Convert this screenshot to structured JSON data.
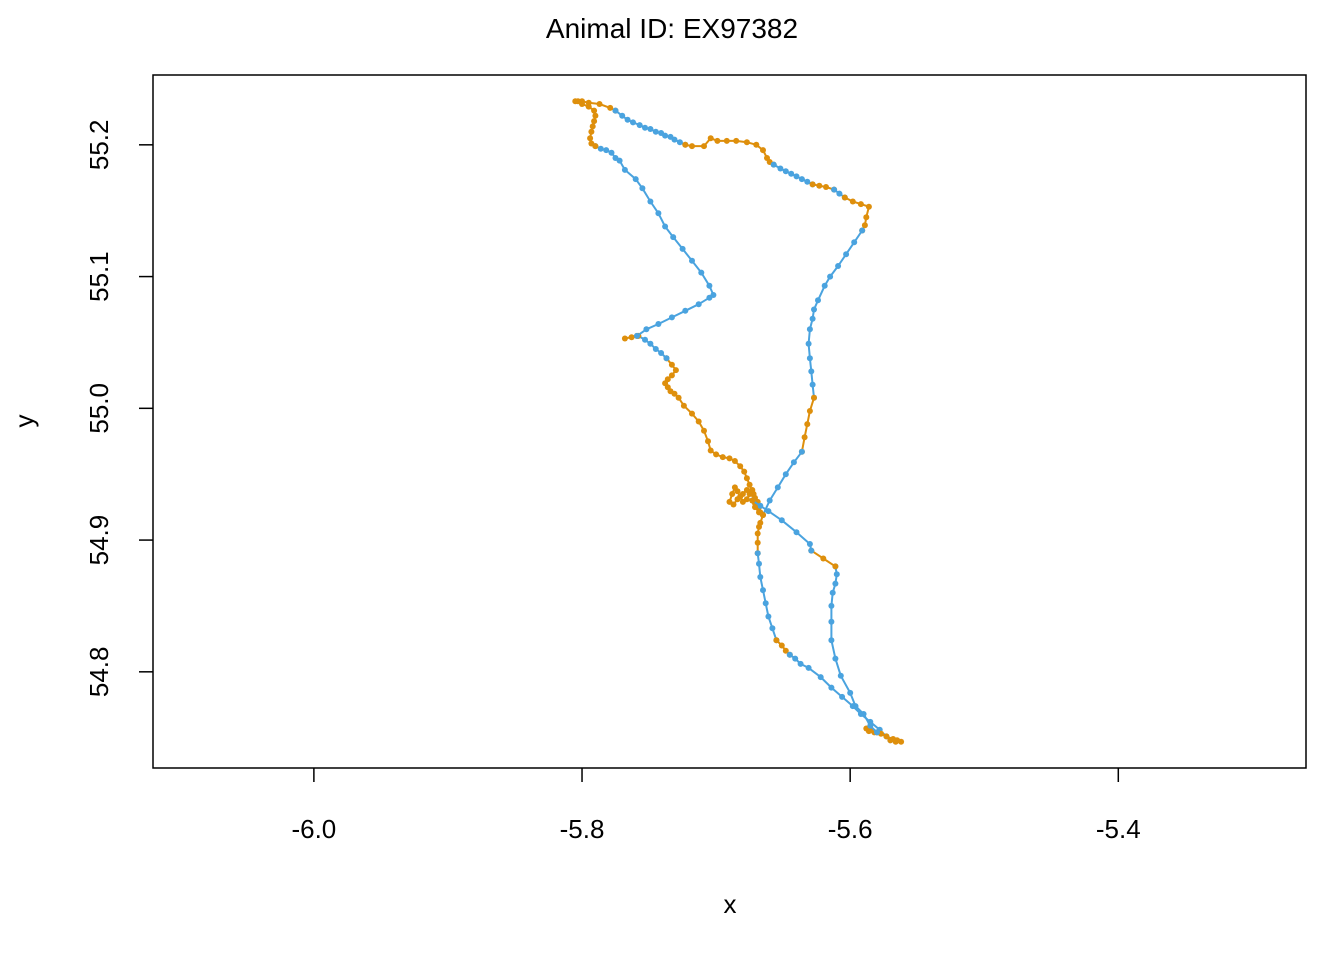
{
  "chart_data": {
    "type": "line",
    "title": "Animal ID: EX97382",
    "xlabel": "x",
    "ylabel": "y",
    "xlim": [
      -6.12,
      -5.26
    ],
    "ylim": [
      54.727,
      55.253
    ],
    "x_ticks": [
      -6.0,
      -5.8,
      -5.6,
      -5.4
    ],
    "x_tick_labels": [
      "-6.0",
      "-5.8",
      "-5.6",
      "-5.4"
    ],
    "y_ticks": [
      54.8,
      54.9,
      55.0,
      55.1,
      55.2
    ],
    "y_tick_labels": [
      "54.8",
      "54.9",
      "55.0",
      "55.1",
      "55.2"
    ],
    "grid": false,
    "colors": {
      "blue": "#4aa3df",
      "orange": "#de8f0c"
    },
    "segments": [
      {
        "color": "orange",
        "points": [
          [
            -5.805,
            55.233
          ],
          [
            -5.8,
            55.233
          ],
          [
            -5.795,
            55.232
          ],
          [
            -5.787,
            55.231
          ],
          [
            -5.779,
            55.228
          ],
          [
            -5.775,
            55.226
          ]
        ]
      },
      {
        "color": "blue",
        "points": [
          [
            -5.775,
            55.226
          ],
          [
            -5.77,
            55.222
          ],
          [
            -5.766,
            55.219
          ],
          [
            -5.762,
            55.217
          ],
          [
            -5.757,
            55.215
          ],
          [
            -5.753,
            55.213
          ],
          [
            -5.749,
            55.212
          ],
          [
            -5.745,
            55.21
          ],
          [
            -5.741,
            55.209
          ],
          [
            -5.738,
            55.207
          ],
          [
            -5.734,
            55.206
          ],
          [
            -5.731,
            55.204
          ],
          [
            -5.727,
            55.202
          ],
          [
            -5.723,
            55.2
          ]
        ]
      },
      {
        "color": "orange",
        "points": [
          [
            -5.723,
            55.2
          ],
          [
            -5.718,
            55.199
          ],
          [
            -5.709,
            55.199
          ],
          [
            -5.704,
            55.205
          ],
          [
            -5.699,
            55.203
          ],
          [
            -5.692,
            55.203
          ],
          [
            -5.685,
            55.203
          ],
          [
            -5.677,
            55.202
          ],
          [
            -5.67,
            55.2
          ],
          [
            -5.665,
            55.196
          ],
          [
            -5.662,
            55.19
          ],
          [
            -5.66,
            55.187
          ],
          [
            -5.657,
            55.185
          ]
        ]
      },
      {
        "color": "blue",
        "points": [
          [
            -5.657,
            55.185
          ],
          [
            -5.652,
            55.182
          ],
          [
            -5.648,
            55.18
          ],
          [
            -5.644,
            55.178
          ],
          [
            -5.64,
            55.176
          ],
          [
            -5.636,
            55.174
          ],
          [
            -5.632,
            55.172
          ],
          [
            -5.628,
            55.17
          ]
        ]
      },
      {
        "color": "orange",
        "points": [
          [
            -5.628,
            55.17
          ],
          [
            -5.623,
            55.169
          ],
          [
            -5.618,
            55.168
          ],
          [
            -5.612,
            55.166
          ]
        ]
      },
      {
        "color": "blue",
        "points": [
          [
            -5.612,
            55.166
          ],
          [
            -5.608,
            55.163
          ],
          [
            -5.604,
            55.16
          ]
        ]
      },
      {
        "color": "orange",
        "points": [
          [
            -5.604,
            55.16
          ],
          [
            -5.598,
            55.157
          ],
          [
            -5.592,
            55.155
          ],
          [
            -5.586,
            55.153
          ],
          [
            -5.588,
            55.145
          ],
          [
            -5.589,
            55.139
          ],
          [
            -5.591,
            55.135
          ]
        ]
      },
      {
        "color": "blue",
        "points": [
          [
            -5.591,
            55.135
          ],
          [
            -5.597,
            55.126
          ],
          [
            -5.603,
            55.117
          ],
          [
            -5.609,
            55.108
          ],
          [
            -5.615,
            55.1
          ],
          [
            -5.619,
            55.093
          ],
          [
            -5.624,
            55.082
          ],
          [
            -5.627,
            55.075
          ],
          [
            -5.628,
            55.068
          ],
          [
            -5.63,
            55.06
          ],
          [
            -5.631,
            55.049
          ],
          [
            -5.63,
            55.038
          ],
          [
            -5.629,
            55.028
          ],
          [
            -5.628,
            55.018
          ],
          [
            -5.627,
            55.008
          ]
        ]
      },
      {
        "color": "orange",
        "points": [
          [
            -5.627,
            55.008
          ],
          [
            -5.63,
            54.998
          ],
          [
            -5.632,
            54.988
          ],
          [
            -5.634,
            54.978
          ],
          [
            -5.636,
            54.967
          ]
        ]
      },
      {
        "color": "blue",
        "points": [
          [
            -5.636,
            54.967
          ],
          [
            -5.642,
            54.959
          ],
          [
            -5.648,
            54.95
          ],
          [
            -5.654,
            54.94
          ],
          [
            -5.66,
            54.93
          ],
          [
            -5.665,
            54.919
          ]
        ]
      },
      {
        "color": "orange",
        "points": [
          [
            -5.665,
            54.919
          ],
          [
            -5.667,
            54.921
          ],
          [
            -5.668,
            54.925
          ],
          [
            -5.669,
            54.929
          ],
          [
            -5.671,
            54.932
          ],
          [
            -5.672,
            54.935
          ],
          [
            -5.673,
            54.938
          ],
          [
            -5.675,
            54.935
          ],
          [
            -5.677,
            54.931
          ],
          [
            -5.68,
            54.929
          ],
          [
            -5.682,
            54.933
          ],
          [
            -5.684,
            54.937
          ],
          [
            -5.686,
            54.94
          ],
          [
            -5.688,
            54.935
          ],
          [
            -5.69,
            54.929
          ],
          [
            -5.687,
            54.927
          ],
          [
            -5.684,
            54.931
          ],
          [
            -5.68,
            54.935
          ],
          [
            -5.677,
            54.938
          ],
          [
            -5.673,
            54.935
          ],
          [
            -5.671,
            54.928
          ],
          [
            -5.673,
            54.936
          ],
          [
            -5.675,
            54.942
          ],
          [
            -5.677,
            54.947
          ],
          [
            -5.679,
            54.952
          ],
          [
            -5.682,
            54.956
          ],
          [
            -5.686,
            54.96
          ],
          [
            -5.69,
            54.962
          ],
          [
            -5.695,
            54.963
          ],
          [
            -5.7,
            54.965
          ],
          [
            -5.704,
            54.968
          ],
          [
            -5.706,
            54.975
          ],
          [
            -5.709,
            54.983
          ],
          [
            -5.713,
            54.99
          ],
          [
            -5.718,
            54.996
          ],
          [
            -5.724,
            55.002
          ],
          [
            -5.728,
            55.008
          ],
          [
            -5.731,
            55.011
          ],
          [
            -5.734,
            55.013
          ],
          [
            -5.736,
            55.016
          ],
          [
            -5.738,
            55.019
          ],
          [
            -5.736,
            55.022
          ],
          [
            -5.733,
            55.025
          ],
          [
            -5.73,
            55.029
          ],
          [
            -5.733,
            55.033
          ],
          [
            -5.737,
            55.038
          ]
        ]
      },
      {
        "color": "blue",
        "points": [
          [
            -5.737,
            55.038
          ],
          [
            -5.741,
            55.042
          ],
          [
            -5.745,
            55.045
          ],
          [
            -5.749,
            55.049
          ],
          [
            -5.753,
            55.052
          ],
          [
            -5.758,
            55.055
          ]
        ]
      },
      {
        "color": "orange",
        "points": [
          [
            -5.758,
            55.055
          ],
          [
            -5.763,
            55.054
          ],
          [
            -5.768,
            55.053
          ],
          [
            -5.759,
            55.055
          ]
        ]
      },
      {
        "color": "blue",
        "points": [
          [
            -5.759,
            55.055
          ],
          [
            -5.752,
            55.06
          ],
          [
            -5.743,
            55.064
          ],
          [
            -5.733,
            55.069
          ],
          [
            -5.723,
            55.074
          ],
          [
            -5.713,
            55.079
          ],
          [
            -5.705,
            55.084
          ],
          [
            -5.702,
            55.086
          ],
          [
            -5.705,
            55.093
          ],
          [
            -5.711,
            55.103
          ],
          [
            -5.718,
            55.112
          ],
          [
            -5.725,
            55.121
          ],
          [
            -5.732,
            55.13
          ],
          [
            -5.738,
            55.138
          ],
          [
            -5.743,
            55.148
          ],
          [
            -5.749,
            55.157
          ],
          [
            -5.755,
            55.167
          ],
          [
            -5.76,
            55.174
          ],
          [
            -5.768,
            55.181
          ],
          [
            -5.772,
            55.188
          ],
          [
            -5.775,
            55.19
          ],
          [
            -5.778,
            55.194
          ],
          [
            -5.782,
            55.196
          ],
          [
            -5.786,
            55.197
          ],
          [
            -5.79,
            55.199
          ]
        ]
      },
      {
        "color": "orange",
        "points": [
          [
            -5.79,
            55.199
          ],
          [
            -5.793,
            55.201
          ],
          [
            -5.794,
            55.205
          ],
          [
            -5.793,
            55.21
          ],
          [
            -5.792,
            55.214
          ],
          [
            -5.791,
            55.218
          ],
          [
            -5.79,
            55.222
          ],
          [
            -5.791,
            55.226
          ],
          [
            -5.795,
            55.229
          ],
          [
            -5.8,
            55.231
          ],
          [
            -5.803,
            55.233
          ]
        ]
      },
      {
        "color": "orange",
        "points": [
          [
            -5.665,
            54.919
          ],
          [
            -5.667,
            54.913
          ],
          [
            -5.668,
            54.91
          ],
          [
            -5.669,
            54.905
          ],
          [
            -5.669,
            54.898
          ],
          [
            -5.669,
            54.89
          ]
        ]
      },
      {
        "color": "blue",
        "points": [
          [
            -5.669,
            54.89
          ],
          [
            -5.668,
            54.882
          ],
          [
            -5.667,
            54.872
          ],
          [
            -5.665,
            54.862
          ],
          [
            -5.663,
            54.852
          ],
          [
            -5.661,
            54.842
          ],
          [
            -5.658,
            54.833
          ],
          [
            -5.655,
            54.824
          ]
        ]
      },
      {
        "color": "orange",
        "points": [
          [
            -5.655,
            54.824
          ],
          [
            -5.651,
            54.82
          ],
          [
            -5.648,
            54.816
          ],
          [
            -5.645,
            54.813
          ]
        ]
      },
      {
        "color": "blue",
        "points": [
          [
            -5.645,
            54.813
          ],
          [
            -5.641,
            54.81
          ],
          [
            -5.637,
            54.806
          ],
          [
            -5.631,
            54.803
          ],
          [
            -5.622,
            54.796
          ],
          [
            -5.614,
            54.788
          ],
          [
            -5.606,
            54.781
          ],
          [
            -5.598,
            54.774
          ],
          [
            -5.592,
            54.768
          ],
          [
            -5.585,
            54.762
          ],
          [
            -5.578,
            54.756
          ],
          [
            -5.573,
            54.751
          ],
          [
            -5.57,
            54.748
          ]
        ]
      },
      {
        "color": "orange",
        "points": [
          [
            -5.57,
            54.748
          ],
          [
            -5.566,
            54.747
          ],
          [
            -5.562,
            54.747
          ],
          [
            -5.565,
            54.748
          ],
          [
            -5.568,
            54.749
          ],
          [
            -5.573,
            54.751
          ],
          [
            -5.577,
            54.753
          ],
          [
            -5.582,
            54.754
          ],
          [
            -5.586,
            54.755
          ],
          [
            -5.588,
            54.757
          ],
          [
            -5.585,
            54.756
          ],
          [
            -5.58,
            54.754
          ]
        ]
      },
      {
        "color": "blue",
        "points": [
          [
            -5.58,
            54.754
          ],
          [
            -5.585,
            54.759
          ],
          [
            -5.59,
            54.768
          ],
          [
            -5.596,
            54.774
          ],
          [
            -5.6,
            54.784
          ],
          [
            -5.607,
            54.797
          ],
          [
            -5.611,
            54.81
          ],
          [
            -5.614,
            54.824
          ],
          [
            -5.614,
            54.838
          ],
          [
            -5.614,
            54.85
          ],
          [
            -5.613,
            54.86
          ],
          [
            -5.611,
            54.867
          ],
          [
            -5.61,
            54.874
          ],
          [
            -5.611,
            54.88
          ]
        ]
      },
      {
        "color": "orange",
        "points": [
          [
            -5.611,
            54.88
          ],
          [
            -5.62,
            54.886
          ],
          [
            -5.629,
            54.892
          ]
        ]
      },
      {
        "color": "blue",
        "points": [
          [
            -5.629,
            54.892
          ],
          [
            -5.63,
            54.897
          ],
          [
            -5.64,
            54.906
          ],
          [
            -5.651,
            54.915
          ],
          [
            -5.661,
            54.922
          ],
          [
            -5.667,
            54.926
          ],
          [
            -5.673,
            54.93
          ]
        ]
      },
      {
        "color": "orange",
        "points": [
          [
            -5.673,
            54.93
          ],
          [
            -5.671,
            54.925
          ],
          [
            -5.668,
            54.921
          ]
        ]
      }
    ]
  }
}
